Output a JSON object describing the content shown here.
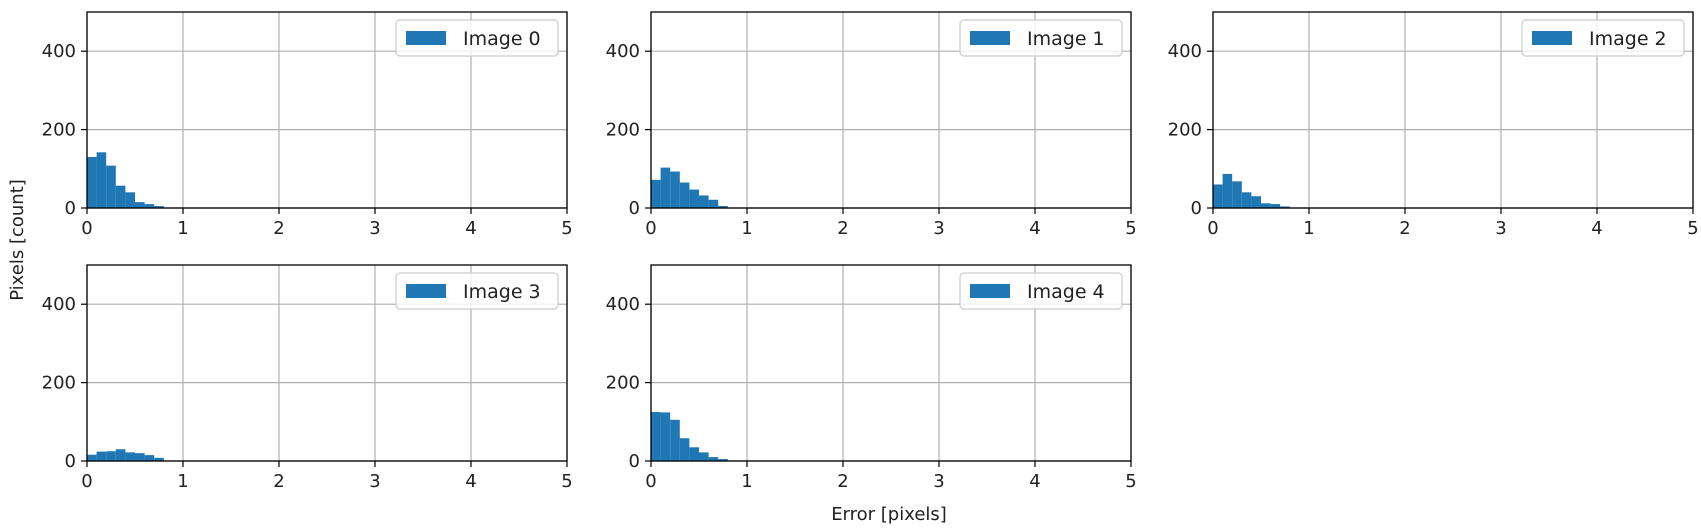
{
  "colors": {
    "bar": "#1f77b4",
    "grid": "#b0b0b0",
    "axis": "#000000"
  },
  "chart_data": {
    "type": "bar",
    "layout": "grid 2x3 (5 panels, last cell empty)",
    "shared_xlabel": "Error [pixels]",
    "shared_ylabel": "Pixels [count]",
    "xlim": [
      0,
      5
    ],
    "ylim": [
      0,
      500
    ],
    "xticks": [
      0,
      1,
      2,
      3,
      4,
      5
    ],
    "yticks": [
      0,
      200,
      400
    ],
    "grid": true,
    "legend_position": "upper right",
    "bin_edges": [
      0,
      0.1,
      0.2,
      0.3,
      0.4,
      0.5,
      0.6,
      0.7,
      0.8,
      0.9
    ],
    "panels": [
      {
        "legend": "Image 0",
        "values": [
          130,
          142,
          108,
          57,
          40,
          15,
          10,
          5,
          1
        ]
      },
      {
        "legend": "Image 1",
        "values": [
          72,
          103,
          93,
          65,
          47,
          32,
          21,
          5,
          0
        ]
      },
      {
        "legend": "Image 2",
        "values": [
          60,
          87,
          68,
          40,
          30,
          12,
          10,
          4,
          0
        ]
      },
      {
        "legend": "Image 3",
        "values": [
          16,
          24,
          25,
          30,
          22,
          20,
          15,
          8,
          0
        ]
      },
      {
        "legend": "Image 4",
        "values": [
          125,
          124,
          105,
          58,
          35,
          22,
          10,
          5,
          0
        ]
      }
    ]
  }
}
